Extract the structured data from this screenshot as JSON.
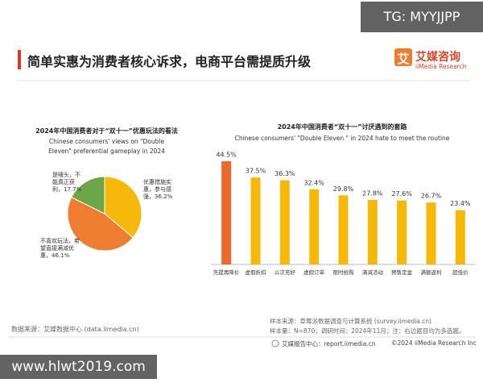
{
  "header": {
    "title": "简单实惠为消费者核心诉求，电商平台需提质升级",
    "logo_icon": "艾",
    "logo_name": "艾媒咨询",
    "logo_sub": "iiMedia Research"
  },
  "watermark": {
    "top": "TG: MYYJJPP",
    "bottom": "www.hlwt2019.com"
  },
  "chart_data": [
    {
      "type": "pie",
      "title": "2024年中国消费者对于“双十一”优惠玩法的看法",
      "subtitle": "Chinese consumers' views on \"Double Eleven\" preferential gameplay in 2024",
      "categories": [
        "优惠措施实惠，参与感强，",
        "不喜欢玩法，希望直接满减优惠，",
        "是噱头，不能真正获利，"
      ],
      "values": [
        36.2,
        46.1,
        17.7
      ],
      "value_labels": [
        "36.2%",
        "46.1%",
        "17.7%"
      ],
      "colors": [
        "#f6b90a",
        "#ee7d31",
        "#6ca646"
      ]
    },
    {
      "type": "bar",
      "title": "2024年中国消费者“双十一”讨厌遇到的套路",
      "subtitle": "Chinese consumers' \"Double Eleven \" in 2024 hate to meet the routine",
      "categories": [
        "先提再降价",
        "虚假折扣",
        "以次充好",
        "虚假订单",
        "限时抢购",
        "满减活动",
        "预售定金",
        "满额返利",
        "超低价"
      ],
      "values": [
        44.5,
        37.5,
        36.3,
        32.4,
        29.8,
        27.8,
        27.6,
        26.7,
        23.4
      ],
      "value_labels": [
        "44.5%",
        "37.5%",
        "36.3%",
        "32.4%",
        "29.8%",
        "27.8%",
        "27.6%",
        "26.7%",
        "23.4%"
      ],
      "colors": [
        "#ea6a2c",
        "#f6b90a",
        "#f6b90a",
        "#f6b90a",
        "#f6b90a",
        "#f6b90a",
        "#f6b90a",
        "#f6b90a",
        "#f6b90a"
      ]
    }
  ],
  "footer": {
    "source_left": "数据来源：艾媒数据中心 (data.iimedia.cn)",
    "sample_source": "样本来源：草莓派数据调查与计算系统 (survey.iimedia.cn)",
    "sample_info": "样本量：N=870；调研时间：2024年11月；注：右边题目均为多选题。",
    "report_center": "艾媒报告中心：report.iimedia.cn",
    "copyright": "©2024 iiMedia Research Inc"
  }
}
